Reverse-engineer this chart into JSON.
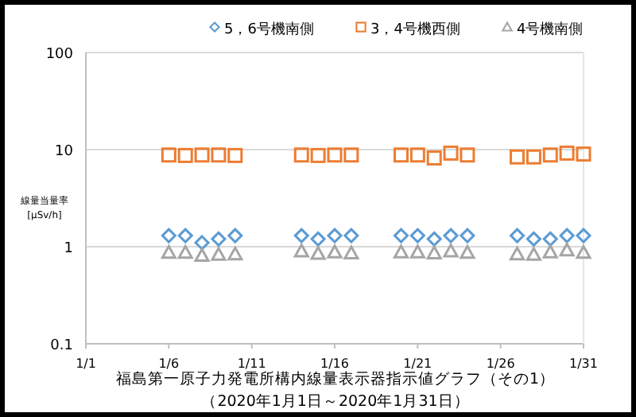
{
  "chart_data": {
    "type": "scatter",
    "title": "福島第一原子力発電所構内線量表示器指示値グラフ（その1）",
    "subtitle": "（2020年1月1日～2020年1月31日）",
    "ylabel": "線量当量率\n[μSv/h]",
    "x": [
      "2020-01-06",
      "2020-01-07",
      "2020-01-08",
      "2020-01-09",
      "2020-01-10",
      "2020-01-14",
      "2020-01-15",
      "2020-01-16",
      "2020-01-17",
      "2020-01-20",
      "2020-01-21",
      "2020-01-22",
      "2020-01-23",
      "2020-01-24",
      "2020-01-27",
      "2020-01-28",
      "2020-01-29",
      "2020-01-30",
      "2020-01-31"
    ],
    "series": [
      {
        "name": "5，6号機南側",
        "color": "#5b9bd5",
        "marker": "diamond",
        "values": [
          1.3,
          1.3,
          1.1,
          1.2,
          1.3,
          1.3,
          1.2,
          1.3,
          1.3,
          1.3,
          1.3,
          1.2,
          1.3,
          1.3,
          1.3,
          1.2,
          1.2,
          1.3,
          1.3
        ]
      },
      {
        "name": "3，4号機西側",
        "color": "#ed7d31",
        "marker": "square",
        "values": [
          8.8,
          8.7,
          8.8,
          8.8,
          8.7,
          8.8,
          8.7,
          8.8,
          8.8,
          8.8,
          8.8,
          8.2,
          9.2,
          8.8,
          8.4,
          8.4,
          8.8,
          9.2,
          9.0
        ]
      },
      {
        "name": "4号機南側",
        "color": "#a5a5a5",
        "marker": "triangle",
        "values": [
          0.87,
          0.87,
          0.81,
          0.83,
          0.84,
          0.9,
          0.85,
          0.88,
          0.86,
          0.88,
          0.88,
          0.86,
          0.9,
          0.87,
          0.84,
          0.83,
          0.88,
          0.92,
          0.87
        ]
      }
    ],
    "log": true,
    "ylim": [
      0.1,
      100
    ],
    "yticks": [
      0.1,
      1,
      10,
      100
    ],
    "xlim": [
      "2020-01-01",
      "2020-01-31"
    ],
    "xticks": [
      {
        "value": "2020-01-01",
        "label": "1/1"
      },
      {
        "value": "2020-01-06",
        "label": "1/6"
      },
      {
        "value": "2020-01-11",
        "label": "1/11"
      },
      {
        "value": "2020-01-16",
        "label": "1/16"
      },
      {
        "value": "2020-01-21",
        "label": "1/21"
      },
      {
        "value": "2020-01-26",
        "label": "1/26"
      },
      {
        "value": "2020-01-31",
        "label": "1/31"
      }
    ],
    "grid": "y",
    "legend": "top"
  }
}
